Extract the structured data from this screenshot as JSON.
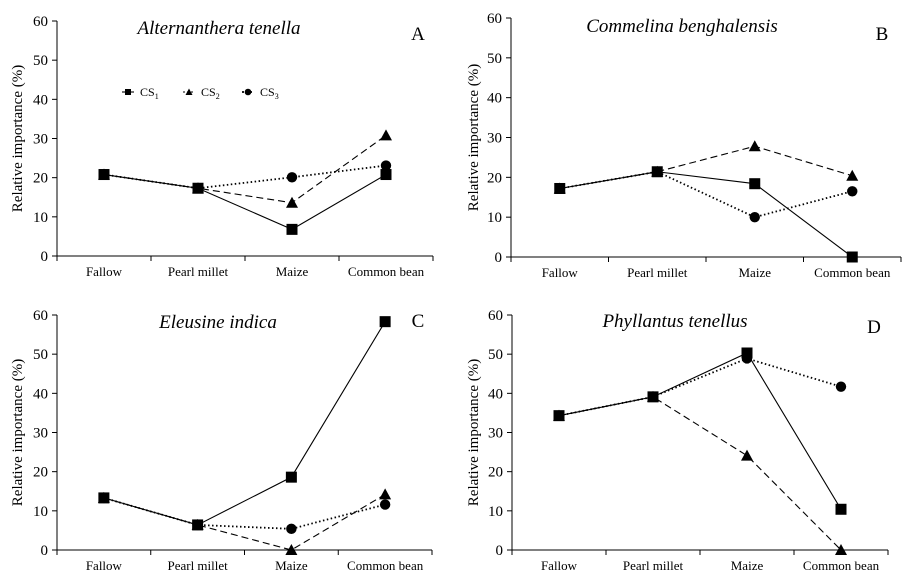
{
  "chart_data": [
    {
      "type": "line",
      "panel": "A",
      "title": "Alternanthera tenella",
      "xlabel": "",
      "ylabel": "Relative importance (%)",
      "categories": [
        "Fallow",
        "Pearl millet",
        "Maize",
        "Common bean"
      ],
      "yticks": [
        "0",
        "10",
        "20",
        "30",
        "40",
        "50",
        "60"
      ],
      "ylim": [
        0,
        60
      ],
      "grid": false,
      "legend": {
        "placement": "upper-left-inside",
        "entries": [
          {
            "base": "CS",
            "sub": "1"
          },
          {
            "base": "CS",
            "sub": "2"
          },
          {
            "base": "CS",
            "sub": "3"
          }
        ]
      },
      "series": [
        {
          "name": "CS1",
          "marker": "square",
          "line": "solid",
          "values": [
            20.8,
            17.3,
            6.8,
            20.8
          ]
        },
        {
          "name": "CS2",
          "marker": "triangle",
          "line": "dashed",
          "values": [
            20.8,
            17.3,
            13.6,
            30.8
          ]
        },
        {
          "name": "CS3",
          "marker": "circle",
          "line": "dotted",
          "values": [
            20.8,
            17.3,
            20.1,
            23.1
          ]
        }
      ]
    },
    {
      "type": "line",
      "panel": "B",
      "title": "Commelina benghalensis",
      "xlabel": "",
      "ylabel": "Relative importance (%)",
      "categories": [
        "Fallow",
        "Pearl millet",
        "Maize",
        "Common bean"
      ],
      "yticks": [
        "0",
        "10",
        "20",
        "30",
        "40",
        "50",
        "60"
      ],
      "ylim": [
        0,
        60
      ],
      "grid": false,
      "series": [
        {
          "name": "CS1",
          "marker": "square",
          "line": "solid",
          "values": [
            17.2,
            21.4,
            18.4,
            0
          ]
        },
        {
          "name": "CS2",
          "marker": "triangle",
          "line": "dashed",
          "values": [
            17.2,
            21.4,
            27.8,
            20.4
          ]
        },
        {
          "name": "CS3",
          "marker": "circle",
          "line": "dotted",
          "values": [
            17.2,
            21.4,
            10.0,
            16.5
          ]
        }
      ]
    },
    {
      "type": "line",
      "panel": "C",
      "title": "Eleusine indica",
      "xlabel": "",
      "ylabel": "Relative importance (%)",
      "categories": [
        "Fallow",
        "Pearl millet",
        "Maize",
        "Common bean"
      ],
      "yticks": [
        "0",
        "10",
        "20",
        "30",
        "40",
        "50",
        "60"
      ],
      "ylim": [
        0,
        60
      ],
      "grid": false,
      "series": [
        {
          "name": "CS1",
          "marker": "square",
          "line": "solid",
          "values": [
            13.3,
            6.4,
            18.6,
            58.3
          ]
        },
        {
          "name": "CS2",
          "marker": "triangle",
          "line": "dashed",
          "values": [
            13.3,
            6.4,
            0,
            14.2
          ]
        },
        {
          "name": "CS3",
          "marker": "circle",
          "line": "dotted",
          "values": [
            13.3,
            6.4,
            5.4,
            11.6
          ]
        }
      ]
    },
    {
      "type": "line",
      "panel": "D",
      "title": "Phyllantus tenellus",
      "xlabel": "",
      "ylabel": "Relative importance (%)",
      "categories": [
        "Fallow",
        "Pearl millet",
        "Maize",
        "Common bean"
      ],
      "yticks": [
        "0",
        "10",
        "20",
        "30",
        "40",
        "50",
        "60"
      ],
      "ylim": [
        0,
        60
      ],
      "grid": false,
      "series": [
        {
          "name": "CS1",
          "marker": "square",
          "line": "solid",
          "values": [
            34.3,
            39.1,
            50.3,
            10.4
          ]
        },
        {
          "name": "CS2",
          "marker": "triangle",
          "line": "dashed",
          "values": [
            34.3,
            39.1,
            24.1,
            0
          ]
        },
        {
          "name": "CS3",
          "marker": "circle",
          "line": "dotted",
          "values": [
            34.3,
            39.1,
            48.9,
            41.7
          ]
        }
      ]
    }
  ]
}
